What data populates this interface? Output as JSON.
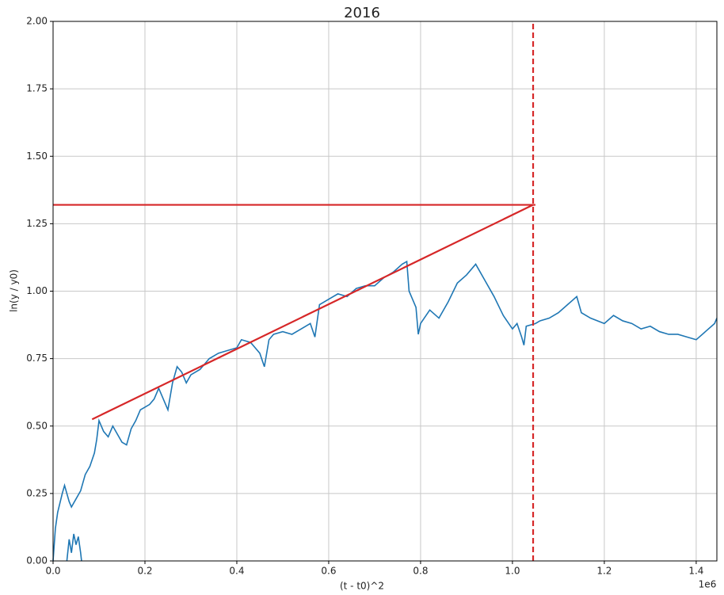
{
  "chart_data": {
    "type": "line",
    "title": "2016",
    "xlabel": "(t - t0)^2",
    "ylabel": "ln(y / y0)",
    "x_offset_label": "1e6",
    "xlim": [
      0,
      1.445
    ],
    "ylim": [
      0,
      2
    ],
    "xticks": [
      {
        "value": 0,
        "label": "0.0"
      },
      0.2,
      0.4,
      0.6,
      0.8,
      {
        "value": 1,
        "label": "1.0"
      },
      1.2,
      1.4
    ],
    "yticks": [
      {
        "value": 0,
        "label": "0.00"
      },
      {
        "value": 0.25,
        "label": "0.25"
      },
      {
        "value": 0.5,
        "label": "0.50"
      },
      {
        "value": 0.75,
        "label": "0.75"
      },
      {
        "value": 1,
        "label": "1.00"
      },
      {
        "value": 1.25,
        "label": "1.25"
      },
      {
        "value": 1.5,
        "label": "1.50"
      },
      {
        "value": 1.75,
        "label": "1.75"
      },
      {
        "value": 2,
        "label": "2.00"
      }
    ],
    "grid": true,
    "series": [
      {
        "color": "#1f77b4",
        "x": [
          0,
          0.005,
          0.01,
          0.02,
          0.025,
          0.035,
          0.04,
          0.05,
          0.06,
          0.07,
          0.08,
          0.09,
          0.095,
          0.1,
          0.11,
          0.12,
          0.13,
          0.14,
          0.15,
          0.16,
          0.17,
          0.18,
          0.19,
          0.2,
          0.21,
          0.22,
          0.23,
          0.24,
          0.25,
          0.26,
          0.27,
          0.28,
          0.29,
          0.3,
          0.32,
          0.34,
          0.36,
          0.38,
          0.4,
          0.41,
          0.43,
          0.44,
          0.45,
          0.46,
          0.47,
          0.48,
          0.5,
          0.52,
          0.54,
          0.56,
          0.57,
          0.58,
          0.6,
          0.62,
          0.64,
          0.66,
          0.68,
          0.7,
          0.72,
          0.74,
          0.76,
          0.77,
          0.775,
          0.78,
          0.79,
          0.795,
          0.8,
          0.82,
          0.84,
          0.86,
          0.88,
          0.9,
          0.92,
          0.94,
          0.96,
          0.98,
          1,
          1.01,
          1.02,
          1.025,
          1.03,
          1.05,
          1.06,
          1.08,
          1.1,
          1.12,
          1.14,
          1.15,
          1.17,
          1.2,
          1.22,
          1.24,
          1.26,
          1.28,
          1.3,
          1.32,
          1.34,
          1.36,
          1.38,
          1.4,
          1.42,
          1.44,
          1.445
        ],
        "values": [
          0,
          0.12,
          0.18,
          0.25,
          0.28,
          0.22,
          0.2,
          0.23,
          0.26,
          0.32,
          0.35,
          0.4,
          0.45,
          0.52,
          0.48,
          0.46,
          0.5,
          0.47,
          0.44,
          0.43,
          0.49,
          0.52,
          0.56,
          0.57,
          0.58,
          0.6,
          0.64,
          0.6,
          0.56,
          0.66,
          0.72,
          0.7,
          0.66,
          0.69,
          0.71,
          0.75,
          0.77,
          0.78,
          0.79,
          0.82,
          0.81,
          0.79,
          0.77,
          0.72,
          0.82,
          0.84,
          0.85,
          0.84,
          0.86,
          0.88,
          0.83,
          0.95,
          0.97,
          0.99,
          0.98,
          1.01,
          1.02,
          1.02,
          1.05,
          1.07,
          1.1,
          1.11,
          1,
          0.98,
          0.94,
          0.84,
          0.88,
          0.93,
          0.9,
          0.96,
          1.03,
          1.06,
          1.1,
          1.04,
          0.98,
          0.91,
          0.86,
          0.88,
          0.83,
          0.8,
          0.87,
          0.88,
          0.89,
          0.9,
          0.92,
          0.95,
          0.98,
          0.92,
          0.9,
          0.88,
          0.91,
          0.89,
          0.88,
          0.86,
          0.87,
          0.85,
          0.84,
          0.84,
          0.83,
          0.82,
          0.85,
          0.88,
          0.9
        ]
      },
      {
        "color": "#1f77b4",
        "x": [
          0.03,
          0.035,
          0.04,
          0.045,
          0.05,
          0.055,
          0.06,
          0.062
        ],
        "values": [
          0,
          0.08,
          0.03,
          0.1,
          0.06,
          0.09,
          0.03,
          0
        ]
      }
    ],
    "lines": [
      {
        "color": "#d62728",
        "style": "solid",
        "x": [
          0,
          1.05
        ],
        "y": [
          1.32,
          1.32
        ]
      },
      {
        "color": "#d62728",
        "style": "solid",
        "x": [
          0.085,
          1.045
        ],
        "y": [
          0.525,
          1.32
        ]
      },
      {
        "color": "#d62728",
        "style": "dashed",
        "x": [
          1.045,
          1.045
        ],
        "y": [
          0,
          2
        ]
      }
    ]
  }
}
